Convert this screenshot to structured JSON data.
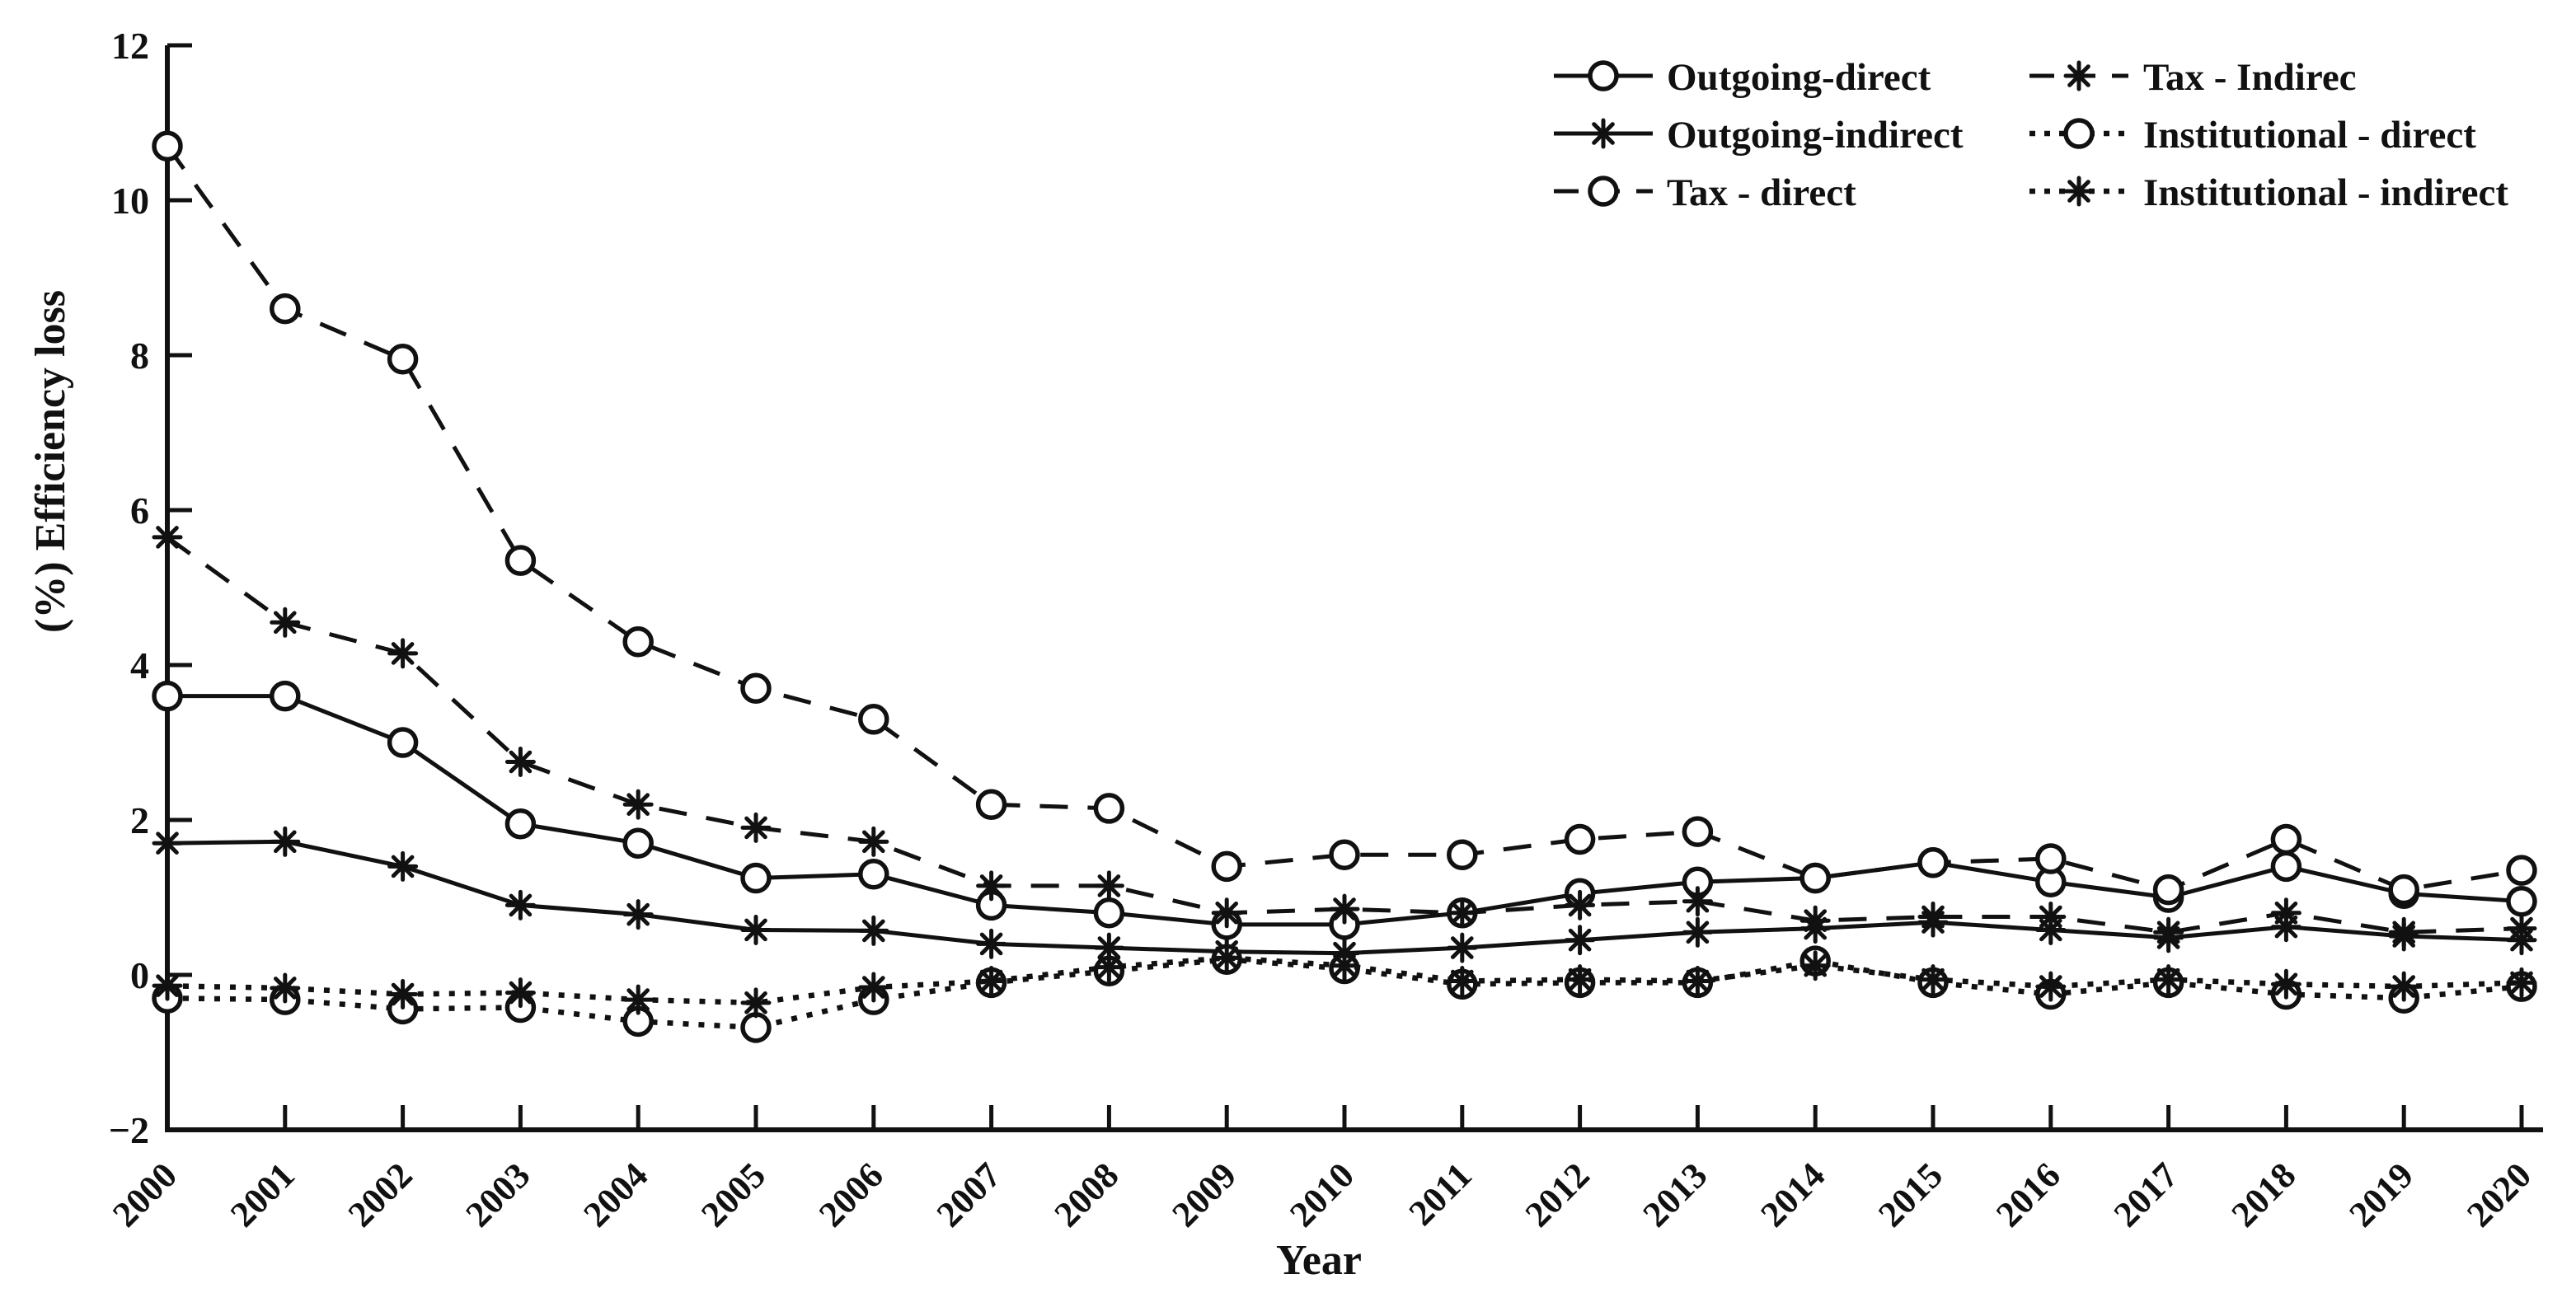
{
  "figure": {
    "background": "#ffffff",
    "ink_color": "#111111"
  },
  "chart_data": {
    "type": "line",
    "title": "",
    "xlabel": "Year",
    "ylabel": "(%) Efficiency loss",
    "x": [
      2000,
      2001,
      2002,
      2003,
      2004,
      2005,
      2006,
      2007,
      2008,
      2009,
      2010,
      2011,
      2012,
      2013,
      2014,
      2015,
      2016,
      2017,
      2018,
      2019,
      2020
    ],
    "xtick_labels": [
      "2000",
      "2001",
      "2002",
      "2003",
      "2004",
      "2005",
      "2006",
      "2007",
      "2008",
      "2009",
      "2010",
      "2011",
      "2012",
      "2013",
      "2014",
      "2015",
      "2016",
      "2017",
      "2018",
      "2019",
      "2020"
    ],
    "ylim": [
      -2,
      12
    ],
    "yticks": [
      -2,
      0,
      2,
      4,
      6,
      8,
      10,
      12
    ],
    "ytick_labels": [
      "−2",
      "0",
      "2",
      "4",
      "6",
      "8",
      "10",
      "12"
    ],
    "grid": false,
    "legend_position": "top-right-inside",
    "legend_columns": 2,
    "legend_order_column_major": [
      "Outgoing-direct",
      "Outgoing-indirect",
      "Tax - direct",
      "Tax - Indirec",
      "Institutional - direct",
      "Institutional - indirect"
    ],
    "series": [
      {
        "name": "Outgoing-direct",
        "line_style": "solid",
        "marker": "circle",
        "values": [
          3.6,
          3.6,
          3.0,
          1.95,
          1.7,
          1.25,
          1.3,
          0.9,
          0.8,
          0.65,
          0.65,
          0.8,
          1.05,
          1.2,
          1.25,
          1.45,
          1.2,
          1.0,
          1.4,
          1.05,
          0.95
        ]
      },
      {
        "name": "Outgoing-indirect",
        "line_style": "solid",
        "marker": "asterisk",
        "values": [
          1.7,
          1.72,
          1.4,
          0.9,
          0.78,
          0.58,
          0.57,
          0.4,
          0.35,
          0.3,
          0.28,
          0.35,
          0.45,
          0.55,
          0.6,
          0.68,
          0.58,
          0.48,
          0.62,
          0.5,
          0.45
        ]
      },
      {
        "name": "Tax - direct",
        "line_style": "dashed",
        "marker": "circle",
        "values": [
          10.7,
          8.6,
          7.95,
          5.35,
          4.3,
          3.7,
          3.3,
          2.2,
          2.15,
          1.4,
          1.55,
          1.55,
          1.75,
          1.85,
          1.25,
          1.45,
          1.5,
          1.1,
          1.75,
          1.1,
          1.35
        ]
      },
      {
        "name": "Tax - Indirec",
        "line_style": "dashed",
        "marker": "asterisk",
        "values": [
          5.65,
          4.55,
          4.15,
          2.75,
          2.2,
          1.9,
          1.72,
          1.15,
          1.15,
          0.8,
          0.85,
          0.8,
          0.9,
          0.95,
          0.7,
          0.75,
          0.75,
          0.55,
          0.8,
          0.55,
          0.6
        ]
      },
      {
        "name": "Institutional - direct",
        "line_style": "dotted",
        "marker": "circle",
        "values": [
          -0.3,
          -0.32,
          -0.44,
          -0.42,
          -0.6,
          -0.68,
          -0.32,
          -0.1,
          0.05,
          0.2,
          0.08,
          -0.12,
          -0.1,
          -0.1,
          0.18,
          -0.1,
          -0.25,
          -0.1,
          -0.25,
          -0.3,
          -0.15
        ]
      },
      {
        "name": "Institutional - indirect",
        "line_style": "dotted",
        "marker": "asterisk",
        "values": [
          -0.14,
          -0.17,
          -0.25,
          -0.23,
          -0.32,
          -0.36,
          -0.16,
          -0.08,
          0.1,
          0.22,
          0.12,
          -0.08,
          -0.06,
          -0.08,
          0.12,
          -0.06,
          -0.15,
          -0.06,
          -0.12,
          -0.15,
          -0.1
        ]
      }
    ]
  }
}
